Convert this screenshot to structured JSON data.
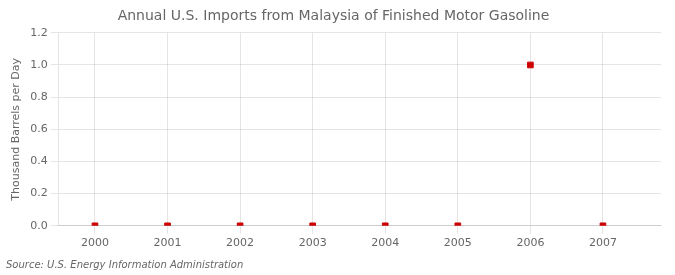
{
  "chart_data": {
    "type": "scatter",
    "title": "Annual U.S. Imports from Malaysia of Finished Motor Gasoline",
    "y_label": "Thousand Barrels per Day",
    "annotations": [
      "Source: U.S. Energy Information Administration"
    ],
    "x": [
      2000,
      2001,
      2002,
      2003,
      2004,
      2005,
      2006,
      2007
    ],
    "values": [
      0.0,
      0.0,
      0.0,
      0.0,
      0.0,
      0.0,
      1.0,
      0.0
    ],
    "color": "#cc0000",
    "marker": "square",
    "xlim": [
      1999.5,
      2007.8
    ],
    "xticks": [
      2000,
      2001,
      2002,
      2003,
      2004,
      2005,
      2006,
      2007
    ],
    "ylim": [
      0.0,
      1.2
    ],
    "yticks": [
      {
        "value": 0.0,
        "label": "0.0"
      },
      0.2,
      0.4,
      0.6,
      0.8,
      {
        "value": 1.0,
        "label": "1.0"
      },
      1.2
    ],
    "grid": true
  }
}
